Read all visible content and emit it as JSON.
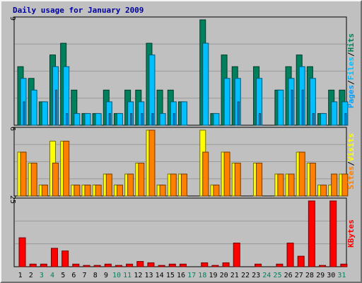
{
  "title": "Daily usage for January 2009",
  "colors": {
    "background": "#c0c0c0",
    "panel": "#c0c0c0",
    "grid": "#9a9a9a",
    "title": "#0000a0",
    "hits": "#00805c",
    "files": "#00c0ff",
    "pages": "#00a0ff",
    "visits": "#ffff00",
    "sites": "#ff8000",
    "kbytes": "#ff0000",
    "weekday_label": "#000000",
    "weekend_label": "#00805c"
  },
  "chart_data": [
    {
      "type": "bar",
      "name": "hits-files-pages",
      "ymax_label": "9",
      "ylim": [
        0,
        9
      ],
      "right_labels": [
        "Pages",
        "/",
        "Files",
        "/",
        "Hits"
      ],
      "categories": [
        "1",
        "2",
        "3",
        "4",
        "5",
        "6",
        "7",
        "8",
        "9",
        "10",
        "11",
        "12",
        "13",
        "14",
        "15",
        "16",
        "17",
        "18",
        "19",
        "20",
        "21",
        "22",
        "23",
        "24",
        "25",
        "26",
        "27",
        "28",
        "29",
        "30",
        "31"
      ],
      "series": [
        {
          "name": "Hits",
          "values": [
            5,
            4,
            2,
            6,
            7,
            3,
            1,
            1,
            3,
            1,
            3,
            3,
            7,
            3,
            3,
            2,
            0,
            9,
            1,
            6,
            5,
            0,
            5,
            0,
            3,
            5,
            6,
            5,
            1,
            3,
            3
          ]
        },
        {
          "name": "Files",
          "values": [
            4,
            3,
            2,
            5,
            5,
            1,
            1,
            1,
            2,
            1,
            2,
            2,
            6,
            1,
            2,
            2,
            0,
            7,
            1,
            4,
            4,
            0,
            4,
            0,
            3,
            4,
            5,
            4,
            1,
            2,
            2
          ]
        },
        {
          "name": "Pages",
          "values": [
            2,
            0,
            0,
            3,
            1,
            0,
            0,
            0,
            1,
            0,
            1,
            1,
            1,
            0,
            1,
            0,
            0,
            0,
            0,
            0,
            2,
            0,
            1,
            0,
            0,
            3,
            3,
            1,
            0,
            0,
            1
          ]
        }
      ]
    },
    {
      "type": "bar",
      "name": "visits-sites",
      "ymax_label": "6",
      "ylim": [
        0,
        6
      ],
      "right_labels": [
        "Sites",
        "/",
        "Visits"
      ],
      "categories": [
        "1",
        "2",
        "3",
        "4",
        "5",
        "6",
        "7",
        "8",
        "9",
        "10",
        "11",
        "12",
        "13",
        "14",
        "15",
        "16",
        "17",
        "18",
        "19",
        "20",
        "21",
        "22",
        "23",
        "24",
        "25",
        "26",
        "27",
        "28",
        "29",
        "30",
        "31"
      ],
      "series": [
        {
          "name": "Visits",
          "values": [
            4,
            3,
            1,
            5,
            5,
            1,
            1,
            1,
            2,
            1,
            2,
            3,
            6,
            1,
            2,
            2,
            0,
            6,
            1,
            4,
            3,
            0,
            3,
            0,
            2,
            2,
            4,
            3,
            1,
            1,
            2
          ]
        },
        {
          "name": "Sites",
          "values": [
            4,
            3,
            1,
            3,
            5,
            1,
            1,
            1,
            2,
            1,
            2,
            3,
            6,
            1,
            2,
            2,
            0,
            4,
            1,
            4,
            3,
            0,
            3,
            0,
            2,
            2,
            4,
            3,
            1,
            2,
            2
          ]
        }
      ]
    },
    {
      "type": "bar",
      "name": "kbytes",
      "ymax_label": "25",
      "ylim": [
        0,
        25
      ],
      "right_labels": [
        "KBytes"
      ],
      "categories": [
        "1",
        "2",
        "3",
        "4",
        "5",
        "6",
        "7",
        "8",
        "9",
        "10",
        "11",
        "12",
        "13",
        "14",
        "15",
        "16",
        "17",
        "18",
        "19",
        "20",
        "21",
        "22",
        "23",
        "24",
        "25",
        "26",
        "27",
        "28",
        "29",
        "30",
        "31"
      ],
      "series": [
        {
          "name": "KBytes",
          "values": [
            11,
            1,
            1,
            7,
            6,
            1,
            0.5,
            0.5,
            1,
            0.5,
            1,
            2,
            1.5,
            0.5,
            1,
            1,
            0,
            1.5,
            0.5,
            1.5,
            9,
            0,
            1,
            0,
            1,
            9,
            4,
            25,
            0.5,
            25,
            1
          ]
        }
      ]
    }
  ],
  "days": [
    {
      "label": "1",
      "weekend": false
    },
    {
      "label": "2",
      "weekend": false
    },
    {
      "label": "3",
      "weekend": true
    },
    {
      "label": "4",
      "weekend": true
    },
    {
      "label": "5",
      "weekend": false
    },
    {
      "label": "6",
      "weekend": false
    },
    {
      "label": "7",
      "weekend": false
    },
    {
      "label": "8",
      "weekend": false
    },
    {
      "label": "9",
      "weekend": false
    },
    {
      "label": "10",
      "weekend": true
    },
    {
      "label": "11",
      "weekend": true
    },
    {
      "label": "12",
      "weekend": false
    },
    {
      "label": "13",
      "weekend": false
    },
    {
      "label": "14",
      "weekend": false
    },
    {
      "label": "15",
      "weekend": false
    },
    {
      "label": "16",
      "weekend": false
    },
    {
      "label": "17",
      "weekend": true
    },
    {
      "label": "18",
      "weekend": true
    },
    {
      "label": "19",
      "weekend": false
    },
    {
      "label": "20",
      "weekend": false
    },
    {
      "label": "21",
      "weekend": false
    },
    {
      "label": "22",
      "weekend": false
    },
    {
      "label": "23",
      "weekend": false
    },
    {
      "label": "24",
      "weekend": true
    },
    {
      "label": "25",
      "weekend": true
    },
    {
      "label": "26",
      "weekend": false
    },
    {
      "label": "27",
      "weekend": false
    },
    {
      "label": "28",
      "weekend": false
    },
    {
      "label": "29",
      "weekend": false
    },
    {
      "label": "30",
      "weekend": false
    },
    {
      "label": "31",
      "weekend": true
    }
  ]
}
